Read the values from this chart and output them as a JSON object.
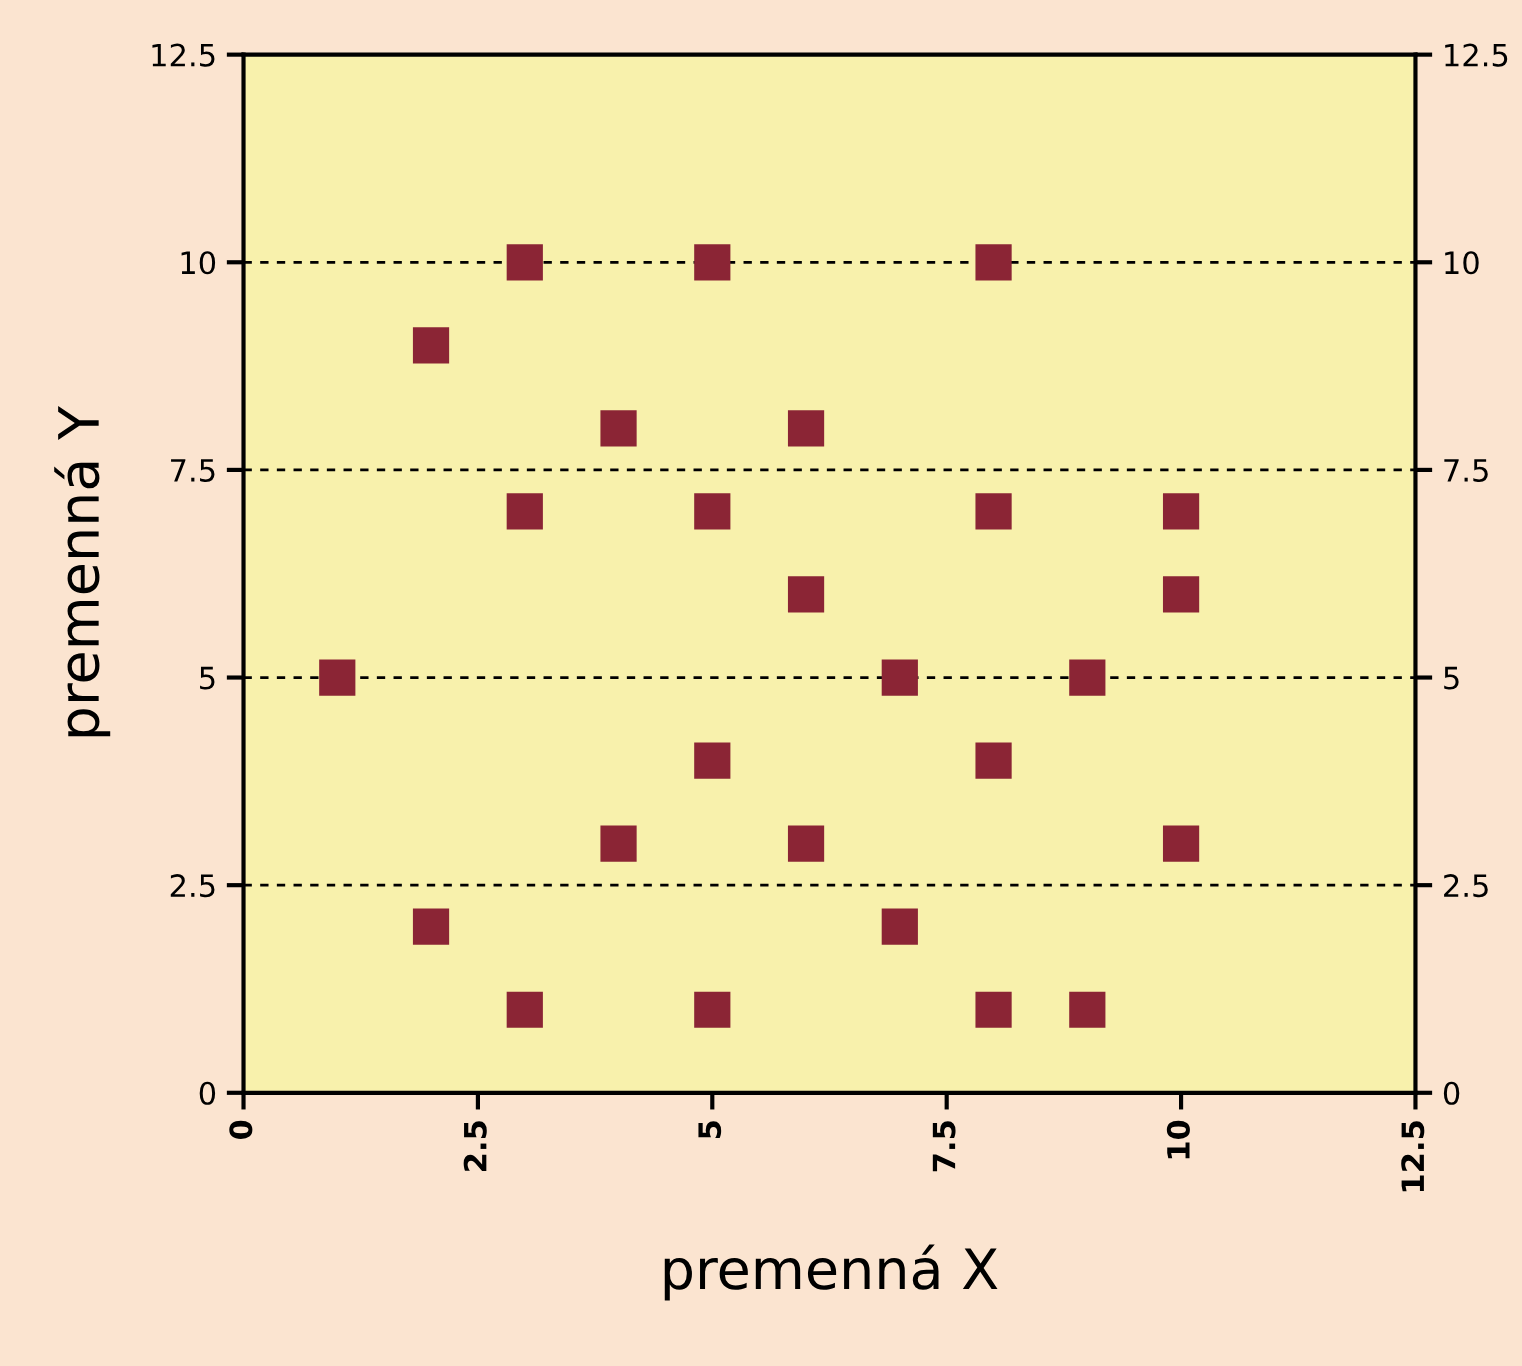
{
  "chart_data": {
    "type": "scatter",
    "xlabel": "premenná X",
    "ylabel": "premenná Y",
    "x": [
      3,
      5,
      8,
      2,
      4,
      6,
      3,
      5,
      8,
      10,
      6,
      10,
      1,
      7,
      9,
      5,
      8,
      4,
      6,
      10,
      2,
      7,
      3,
      5,
      8,
      9
    ],
    "values": [
      10,
      10,
      10,
      9,
      8,
      8,
      7,
      7,
      7,
      7,
      6,
      6,
      5,
      5,
      5,
      4,
      4,
      3,
      3,
      3,
      2,
      2,
      1,
      1,
      1,
      1
    ],
    "color": "#8b2535",
    "marker": "square",
    "xlim": [
      0,
      12.5
    ],
    "xticks": [
      0,
      2.5,
      5,
      7.5,
      10,
      12.5
    ],
    "ylim": [
      0,
      12.5
    ],
    "yticks": [
      0,
      2.5,
      5,
      7.5,
      10,
      12.5
    ],
    "y2lim": [
      0,
      12.5
    ],
    "y2ticks": [
      0,
      2.5,
      5,
      7.5,
      10,
      12.5
    ],
    "grid": "y"
  }
}
